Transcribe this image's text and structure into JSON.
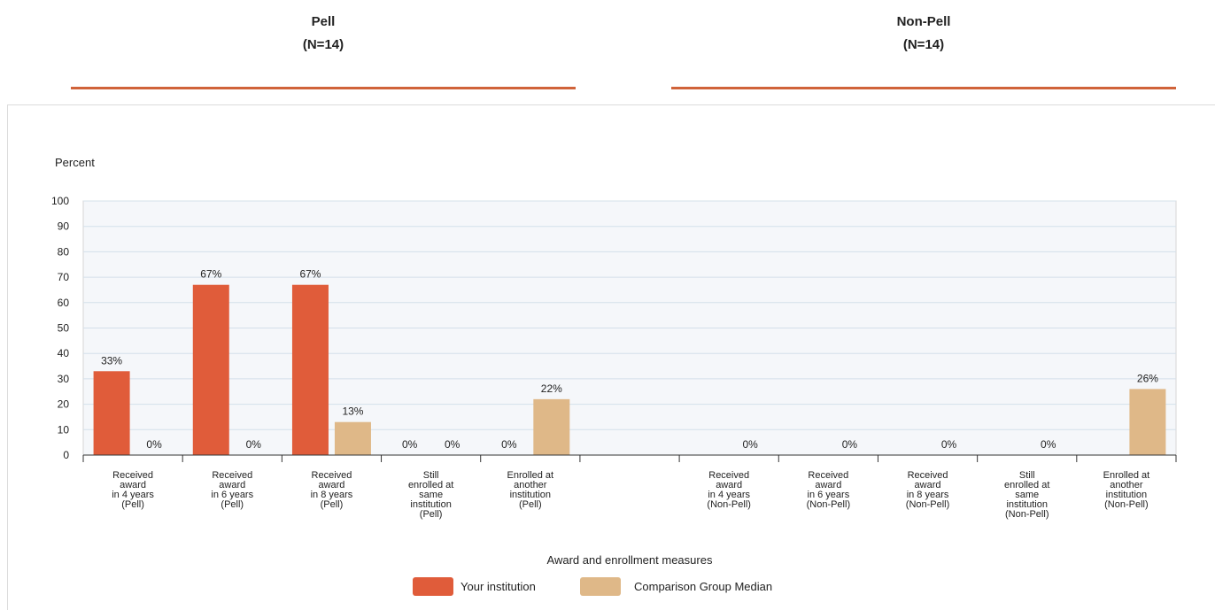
{
  "headers": [
    {
      "title": "Pell",
      "n": "(N=14)"
    },
    {
      "title": "Non-Pell",
      "n": "(N=14)"
    }
  ],
  "chart_data": {
    "type": "bar",
    "ylabel": "Percent",
    "xlabel": "Award and enrollment measures",
    "ylim": [
      0,
      100
    ],
    "yticks": [
      0,
      10,
      20,
      30,
      40,
      50,
      60,
      70,
      80,
      90,
      100
    ],
    "grid": true,
    "legend_position": "bottom",
    "categories": [
      [
        "Received",
        "award",
        "in 4 years",
        "(Pell)"
      ],
      [
        "Received",
        "award",
        "in 6 years",
        "(Pell)"
      ],
      [
        "Received",
        "award",
        "in 8 years",
        "(Pell)"
      ],
      [
        "Still",
        "enrolled at",
        "same",
        "institution",
        "(Pell)"
      ],
      [
        "Enrolled at",
        "another",
        "institution",
        "(Pell)"
      ],
      [],
      [
        "Received",
        "award",
        "in 4 years",
        "(Non-Pell)"
      ],
      [
        "Received",
        "award",
        "in 6 years",
        "(Non-Pell)"
      ],
      [
        "Received",
        "award",
        "in 8 years",
        "(Non-Pell)"
      ],
      [
        "Still",
        "enrolled at",
        "same",
        "institution",
        "(Non-Pell)"
      ],
      [
        "Enrolled at",
        "another",
        "institution",
        "(Non-Pell)"
      ]
    ],
    "series": [
      {
        "name": "Your institution",
        "color": "#e05c3a",
        "values": [
          33,
          67,
          67,
          0,
          0,
          null,
          null,
          null,
          null,
          null,
          null
        ],
        "labels": [
          "33%",
          "67%",
          "67%",
          "0%",
          "0%",
          "",
          "",
          "",
          "",
          "",
          ""
        ]
      },
      {
        "name": "Comparison Group Median",
        "color": "#dfb888",
        "values": [
          0,
          0,
          13,
          0,
          22,
          null,
          0,
          0,
          0,
          0,
          26
        ],
        "labels": [
          "0%",
          "0%",
          "13%",
          "0%",
          "22%",
          "",
          "0%",
          "0%",
          "0%",
          "0%",
          "26%"
        ]
      }
    ]
  }
}
